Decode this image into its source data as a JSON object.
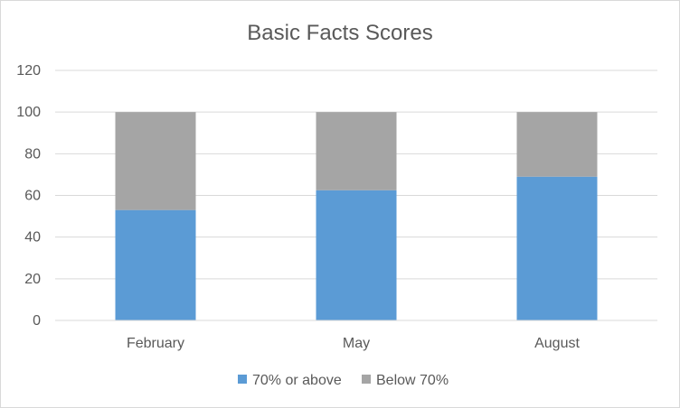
{
  "chart_data": {
    "type": "bar",
    "stacked": true,
    "title": "Basic Facts Scores",
    "xlabel": "",
    "ylabel": "",
    "categories": [
      "February",
      "May",
      "August"
    ],
    "series": [
      {
        "name": "70% or above",
        "values": [
          53,
          62.5,
          69
        ],
        "color": "#5b9bd5"
      },
      {
        "name": "Below 70%",
        "values": [
          47,
          37.5,
          31
        ],
        "color": "#a5a5a5"
      }
    ],
    "ylim": [
      0,
      120
    ],
    "yticks": [
      0,
      20,
      40,
      60,
      80,
      100,
      120
    ],
    "grid": true,
    "legend_position": "bottom"
  }
}
